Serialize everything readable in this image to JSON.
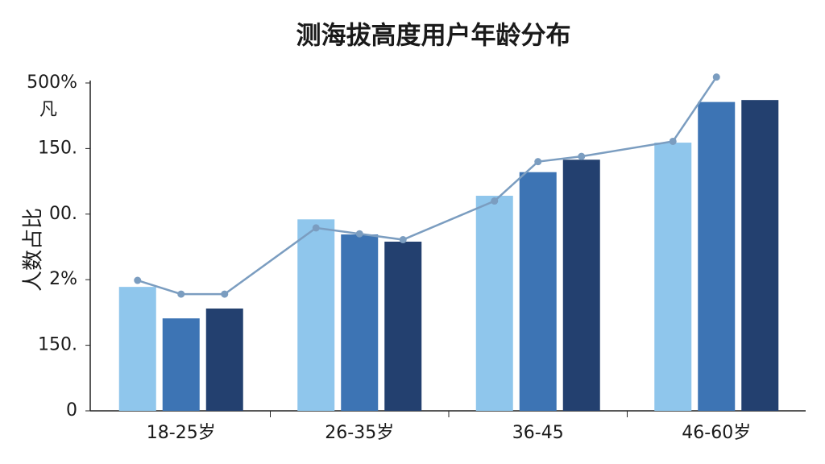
{
  "chart_data": {
    "type": "bar",
    "title": "测海拔高度用户年龄分布",
    "y_label": "人数占比",
    "annotation": "凡",
    "categories": [
      "18-25岁",
      "26-35岁",
      "36-45",
      "46-60岁"
    ],
    "series": [
      {
        "color": "#8fc6ec",
        "values": [
          1.89,
          2.92,
          3.28,
          4.09
        ]
      },
      {
        "color": "#3d74b4",
        "values": [
          1.41,
          2.69,
          3.64,
          4.71
        ]
      },
      {
        "color": "#23406f",
        "values": [
          1.56,
          2.58,
          3.83,
          4.74
        ]
      }
    ],
    "line": {
      "color": "#7b9dc0",
      "values": [
        1.99,
        1.78,
        1.78,
        2.79,
        2.7,
        2.61,
        3.2,
        3.8,
        3.88,
        4.11,
        5.09,
        null
      ]
    },
    "ylim": [
      0,
      5
    ],
    "yticks": [
      0,
      {
        "value": 1,
        "label": "150."
      },
      {
        "value": 2,
        "label": "2%"
      },
      {
        "value": 3,
        "label": "00."
      },
      {
        "value": 4,
        "label": "150."
      },
      {
        "value": 5,
        "label": "500%"
      }
    ],
    "grid": false
  }
}
